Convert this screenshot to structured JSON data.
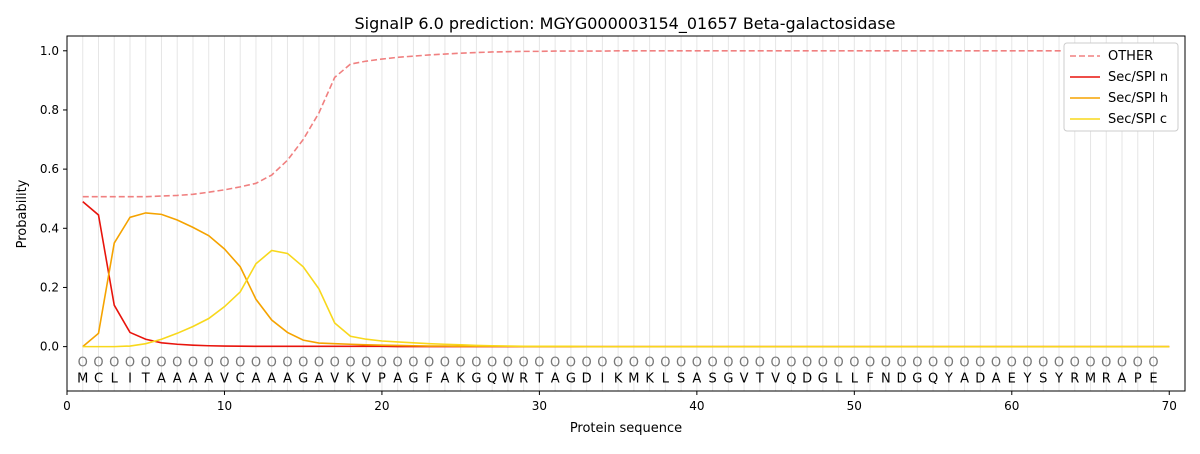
{
  "chart_data": {
    "type": "line",
    "title": "SignalP 6.0 prediction: MGYG000003154_01657 Beta-galactosidase",
    "xlabel": "Protein sequence",
    "ylabel": "Probability",
    "xlim": [
      0,
      71
    ],
    "ylim": [
      -0.15,
      1.05
    ],
    "x_ticks": [
      0,
      10,
      20,
      30,
      40,
      50,
      60,
      70
    ],
    "y_ticks": [
      0.0,
      0.2,
      0.4,
      0.6,
      0.8,
      1.0
    ],
    "x_tick_labels": [
      "0",
      "10",
      "20",
      "30",
      "40",
      "50",
      "60",
      "70"
    ],
    "y_tick_labels": [
      "0.0",
      "0.2",
      "0.4",
      "0.6",
      "0.8",
      "1.0"
    ],
    "grid": "vertical",
    "legend_position": "top-right",
    "sequence": [
      "M",
      "C",
      "L",
      "I",
      "T",
      "A",
      "A",
      "A",
      "A",
      "V",
      "C",
      "A",
      "A",
      "A",
      "G",
      "A",
      "V",
      "K",
      "V",
      "P",
      "A",
      "G",
      "F",
      "A",
      "K",
      "G",
      "Q",
      "W",
      "R",
      "T",
      "A",
      "G",
      "D",
      "I",
      "K",
      "M",
      "K",
      "L",
      "S",
      "A",
      "S",
      "G",
      "V",
      "T",
      "V",
      "Q",
      "D",
      "G",
      "L",
      "L",
      "F",
      "N",
      "D",
      "G",
      "Q",
      "Y",
      "A",
      "D",
      "A",
      "E",
      "Y",
      "S",
      "Y",
      "R",
      "M",
      "R",
      "A",
      "P",
      "E"
    ],
    "region_marker": "O",
    "series": [
      {
        "name": "OTHER",
        "color": "#f08080",
        "style": "dashed",
        "values": [
          0.507,
          0.507,
          0.507,
          0.507,
          0.507,
          0.509,
          0.511,
          0.515,
          0.522,
          0.53,
          0.54,
          0.552,
          0.58,
          0.63,
          0.7,
          0.79,
          0.91,
          0.955,
          0.965,
          0.972,
          0.978,
          0.982,
          0.986,
          0.989,
          0.992,
          0.994,
          0.996,
          0.997,
          0.998,
          0.998,
          0.999,
          0.999,
          0.999,
          0.999,
          1.0,
          1.0,
          1.0,
          1.0,
          1.0,
          1.0,
          1.0,
          1.0,
          1.0,
          1.0,
          1.0,
          1.0,
          1.0,
          1.0,
          1.0,
          1.0,
          1.0,
          1.0,
          1.0,
          1.0,
          1.0,
          1.0,
          1.0,
          1.0,
          1.0,
          1.0,
          1.0,
          1.0,
          1.0,
          1.0,
          1.0,
          1.0,
          1.0,
          1.0,
          1.0,
          1.0
        ]
      },
      {
        "name": "Sec/SPI n",
        "color": "#e8140c",
        "style": "solid",
        "values": [
          0.49,
          0.445,
          0.14,
          0.048,
          0.025,
          0.013,
          0.008,
          0.005,
          0.003,
          0.002,
          0.0015,
          0.001,
          0.001,
          0.001,
          0.001,
          0.001,
          0.001,
          0.001,
          0.001,
          0.001,
          0.0,
          0.0,
          0.0,
          0.0,
          0.0,
          0.0,
          0.0,
          0.0,
          0.0,
          0.0,
          0.0,
          0.0,
          0.0,
          0.0,
          0.0,
          0.0,
          0.0,
          0.0,
          0.0,
          0.0,
          0.0,
          0.0,
          0.0,
          0.0,
          0.0,
          0.0,
          0.0,
          0.0,
          0.0,
          0.0,
          0.0,
          0.0,
          0.0,
          0.0,
          0.0,
          0.0,
          0.0,
          0.0,
          0.0,
          0.0,
          0.0,
          0.0,
          0.0,
          0.0,
          0.0,
          0.0,
          0.0,
          0.0,
          0.0,
          0.0
        ]
      },
      {
        "name": "Sec/SPI h",
        "color": "#f5a300",
        "style": "solid",
        "values": [
          0.0,
          0.045,
          0.35,
          0.437,
          0.452,
          0.447,
          0.428,
          0.403,
          0.375,
          0.33,
          0.27,
          0.16,
          0.09,
          0.048,
          0.022,
          0.012,
          0.01,
          0.008,
          0.006,
          0.005,
          0.004,
          0.003,
          0.002,
          0.002,
          0.001,
          0.001,
          0.001,
          0.001,
          0.0,
          0.0,
          0.0,
          0.0,
          0.0,
          0.0,
          0.0,
          0.0,
          0.0,
          0.0,
          0.0,
          0.0,
          0.0,
          0.0,
          0.0,
          0.0,
          0.0,
          0.0,
          0.0,
          0.0,
          0.0,
          0.0,
          0.0,
          0.0,
          0.0,
          0.0,
          0.0,
          0.0,
          0.0,
          0.0,
          0.0,
          0.0,
          0.0,
          0.0,
          0.0,
          0.0,
          0.0,
          0.0,
          0.0,
          0.0,
          0.0,
          0.0
        ]
      },
      {
        "name": "Sec/SPI c",
        "color": "#f8d81c",
        "style": "solid",
        "values": [
          0.0,
          0.0,
          0.0,
          0.002,
          0.01,
          0.025,
          0.045,
          0.068,
          0.095,
          0.135,
          0.185,
          0.28,
          0.325,
          0.315,
          0.27,
          0.195,
          0.08,
          0.035,
          0.025,
          0.019,
          0.016,
          0.013,
          0.01,
          0.008,
          0.006,
          0.004,
          0.003,
          0.002,
          0.001,
          0.001,
          0.001,
          0.001,
          0.0,
          0.0,
          0.0,
          0.0,
          0.0,
          0.0,
          0.0,
          0.0,
          0.0,
          0.0,
          0.0,
          0.0,
          0.0,
          0.0,
          0.0,
          0.0,
          0.0,
          0.0,
          0.0,
          0.0,
          0.0,
          0.0,
          0.0,
          0.0,
          0.0,
          0.0,
          0.0,
          0.0,
          0.0,
          0.0,
          0.0,
          0.0,
          0.0,
          0.0,
          0.0,
          0.0,
          0.0,
          0.0
        ]
      }
    ]
  }
}
